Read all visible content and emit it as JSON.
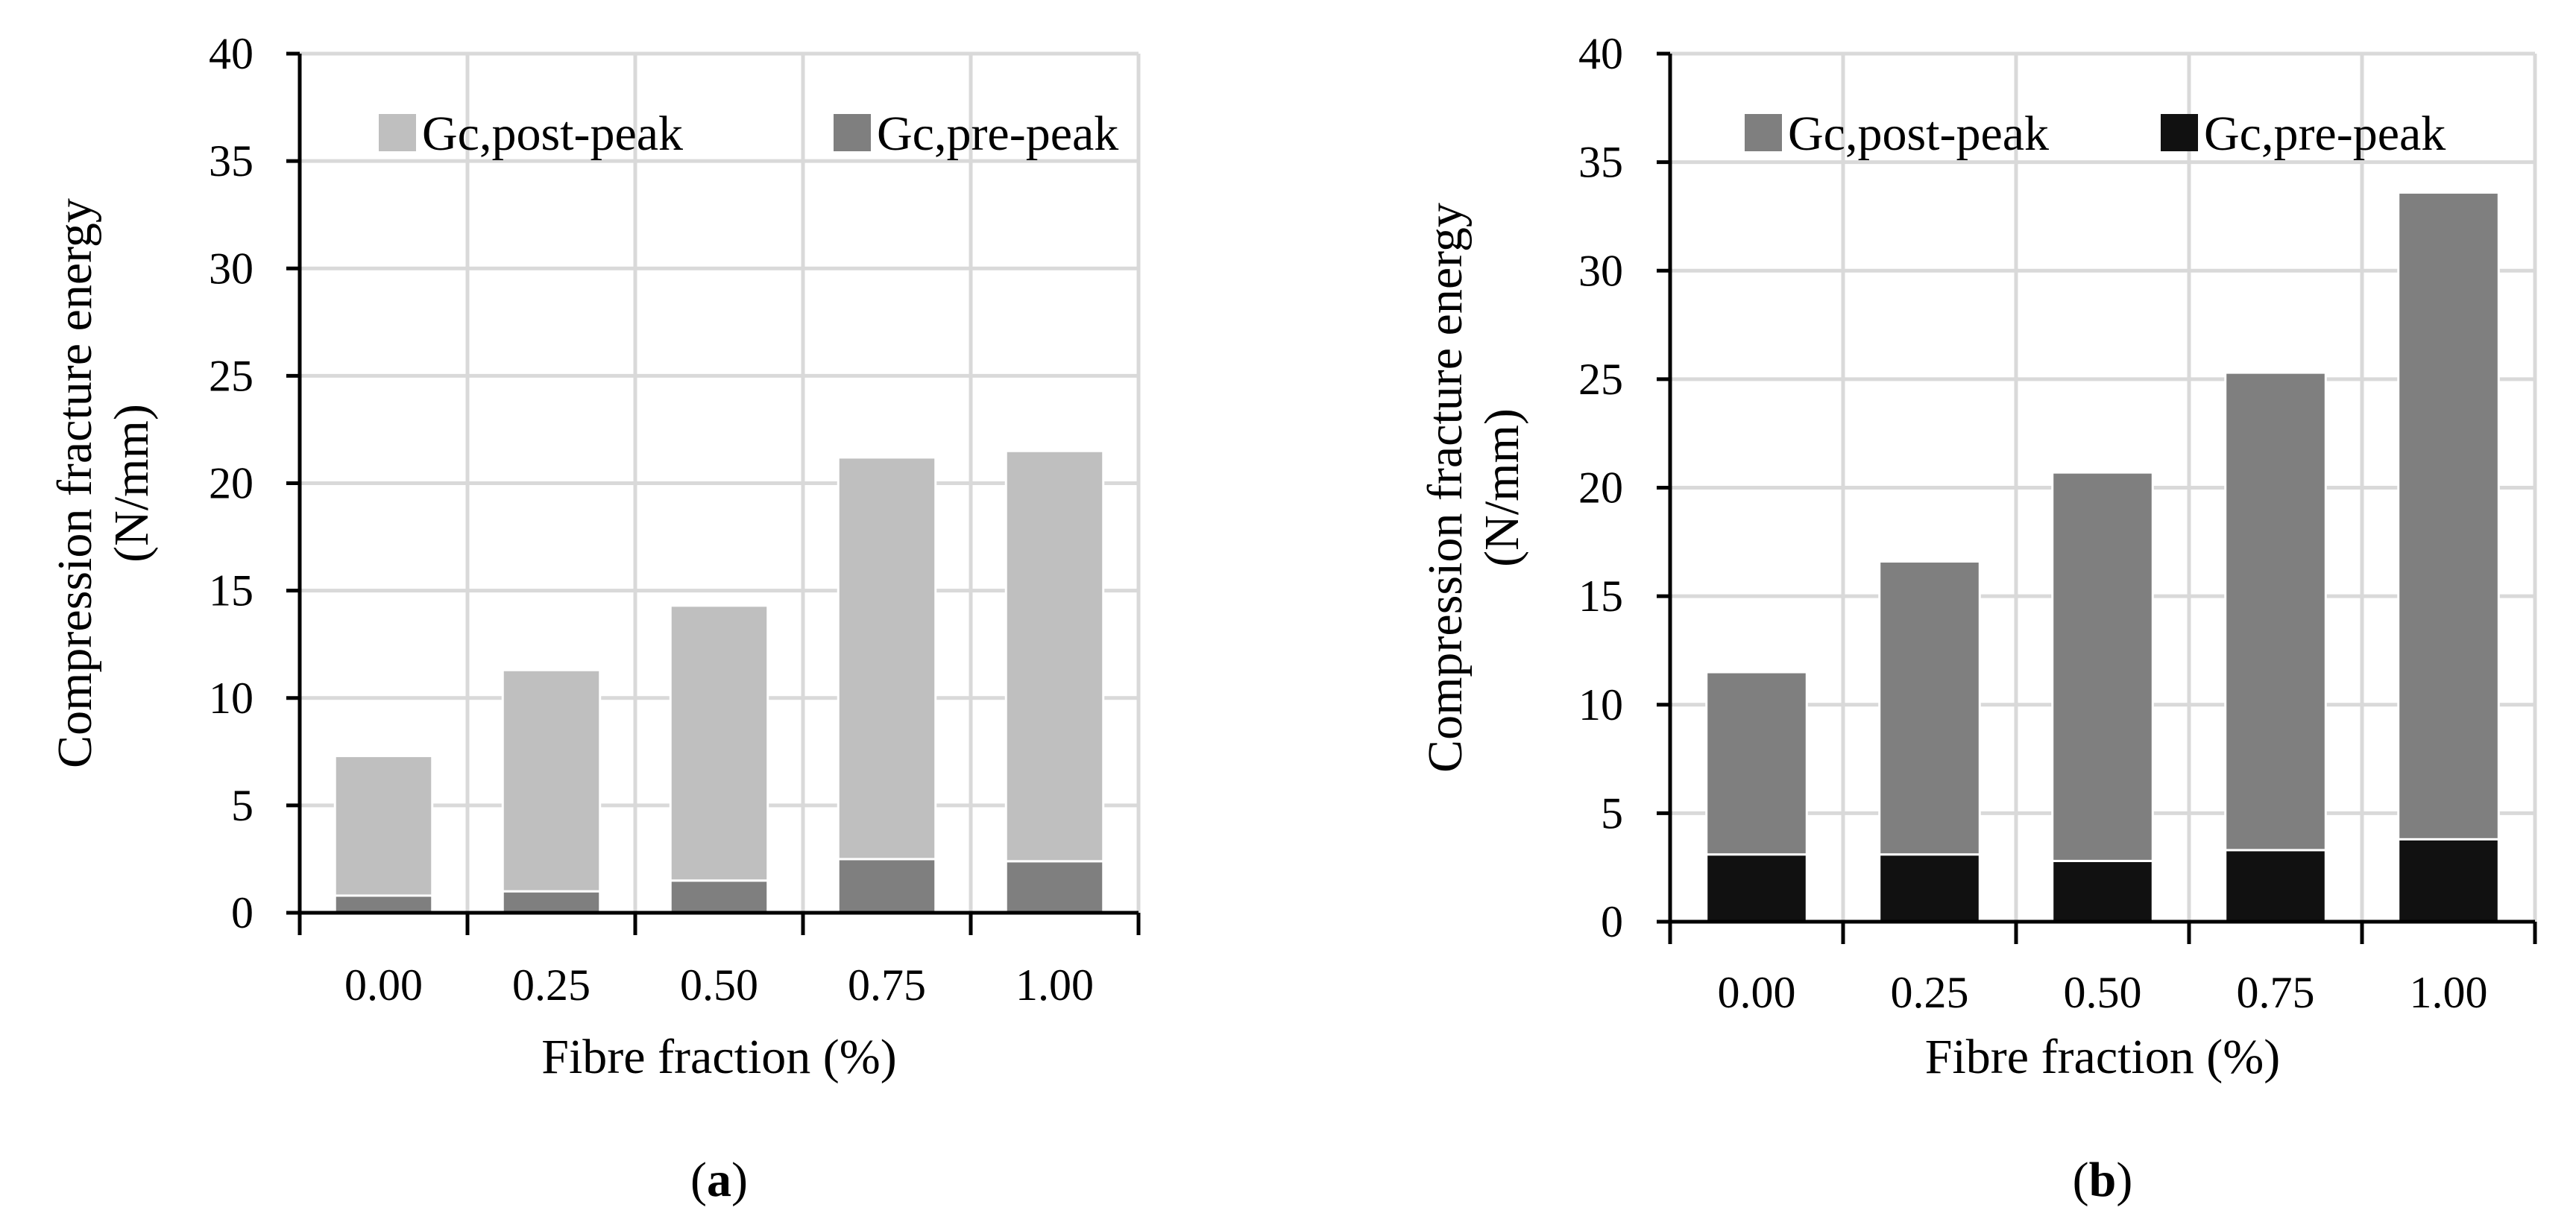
{
  "chart_data": [
    {
      "id": "a",
      "type": "bar",
      "stacked": true,
      "panel_label": "a",
      "categories": [
        "0.00",
        "0.25",
        "0.50",
        "0.75",
        "1.00"
      ],
      "series": [
        {
          "name": "Gc,pre-peak",
          "values": [
            0.8,
            1.0,
            1.5,
            2.5,
            2.4
          ],
          "color": "#7f7f7f"
        },
        {
          "name": "Gc,post-peak",
          "values": [
            6.5,
            10.3,
            12.8,
            18.7,
            19.1
          ],
          "color": "#bfbfbf"
        }
      ],
      "legend_order": [
        "Gc,post-peak",
        "Gc,pre-peak"
      ],
      "xlabel": "Fibre fraction (%)",
      "ylabel_line1": "Compression fracture energy",
      "ylabel_line2": "(N/mm)",
      "ylim": [
        0,
        40
      ],
      "yticks": [
        "0",
        "5",
        "10",
        "15",
        "20",
        "25",
        "30",
        "35",
        "40"
      ],
      "grid": true,
      "legend_position": "top"
    },
    {
      "id": "b",
      "type": "bar",
      "stacked": true,
      "panel_label": "b",
      "categories": [
        "0.00",
        "0.25",
        "0.50",
        "0.75",
        "1.00"
      ],
      "series": [
        {
          "name": "Gc,pre-peak",
          "values": [
            3.1,
            3.1,
            2.8,
            3.3,
            3.8
          ],
          "color": "#111111"
        },
        {
          "name": "Gc,post-peak",
          "values": [
            8.4,
            13.5,
            17.9,
            22.0,
            29.8
          ],
          "color": "#7f7f7f"
        }
      ],
      "legend_order": [
        "Gc,post-peak",
        "Gc,pre-peak"
      ],
      "xlabel": "Fibre fraction (%)",
      "ylabel_line1": "Compression fracture energy",
      "ylabel_line2": "(N/mm)",
      "ylim": [
        0,
        40
      ],
      "yticks": [
        "0",
        "5",
        "10",
        "15",
        "20",
        "25",
        "30",
        "35",
        "40"
      ],
      "grid": true,
      "legend_position": "top"
    }
  ]
}
